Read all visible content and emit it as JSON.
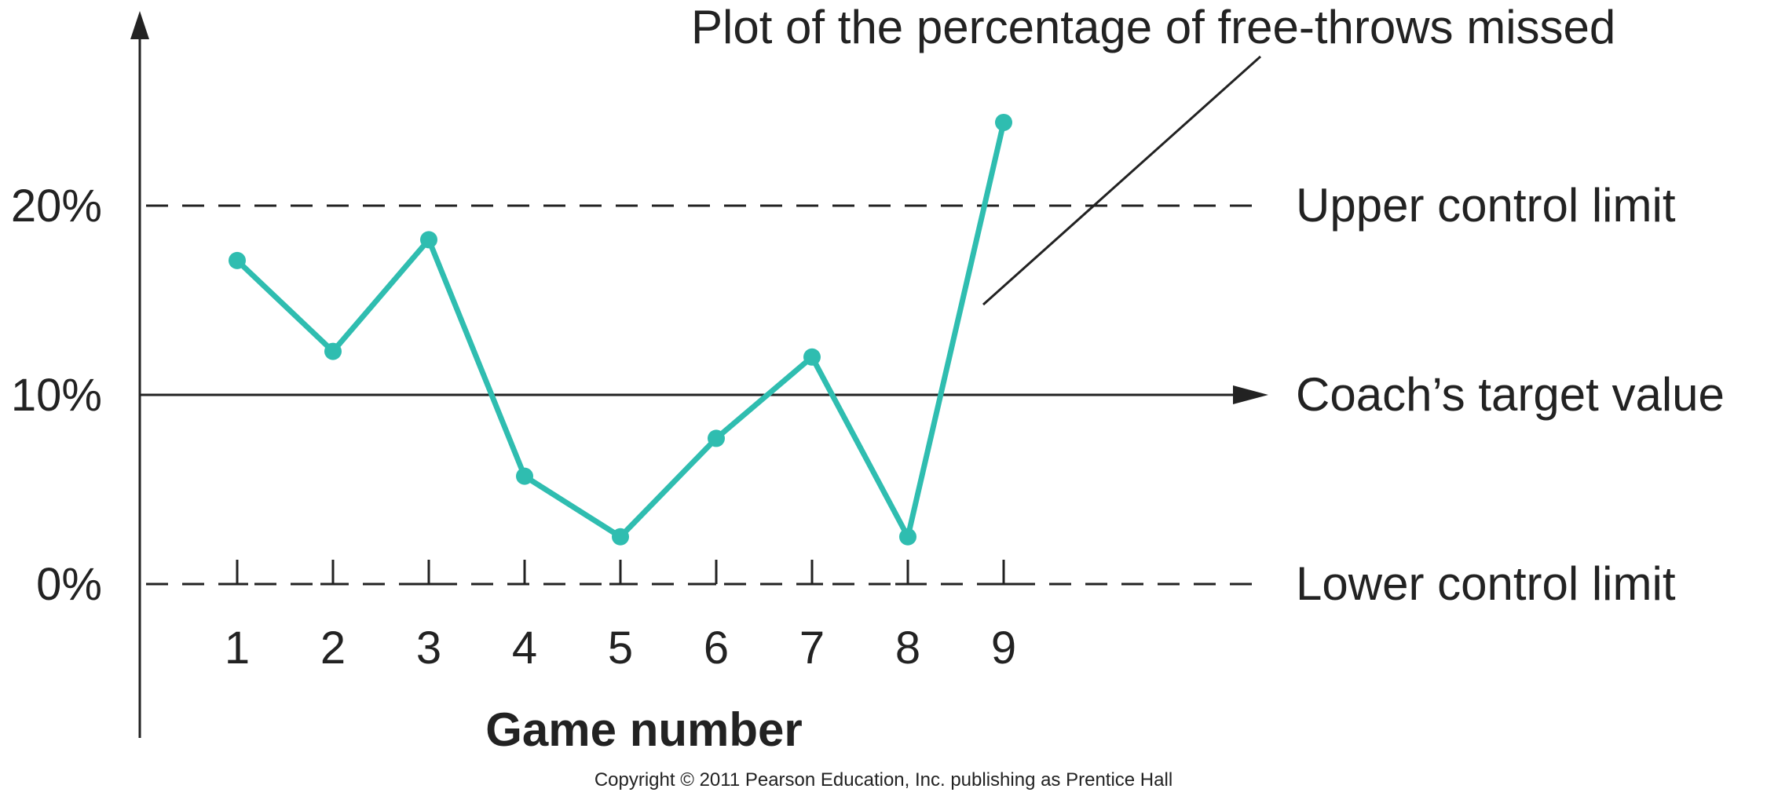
{
  "chart_data": {
    "type": "line",
    "title": "",
    "xlabel": "Game number",
    "ylabel": "",
    "categories": [
      "1",
      "2",
      "3",
      "4",
      "5",
      "6",
      "7",
      "8",
      "9"
    ],
    "x": [
      1,
      2,
      3,
      4,
      5,
      6,
      7,
      8,
      9
    ],
    "ylim": [
      0,
      24
    ],
    "yticks": [
      {
        "value": 0,
        "label": "0%"
      },
      {
        "value": 10,
        "label": "10%"
      },
      {
        "value": 20,
        "label": "20%"
      }
    ],
    "series": [
      {
        "values": [
          17.1,
          12.3,
          18.2,
          5.7,
          2.5,
          7.7,
          12.0,
          2.5,
          24.4
        ],
        "color": "#2fbdb0"
      }
    ],
    "reference_lines": [
      {
        "value": 20,
        "style": "dashed",
        "label": "Upper control limit"
      },
      {
        "value": 10,
        "style": "solid-arrow",
        "label": "Coach’s target value"
      },
      {
        "value": 0,
        "style": "dashed",
        "label": "Lower control limit"
      }
    ],
    "annotation": "Plot of the percentage of free-throws missed",
    "grid": false
  },
  "footer": {
    "copyright": "Copyright © 2011 Pearson Education, Inc. publishing as Prentice Hall"
  }
}
